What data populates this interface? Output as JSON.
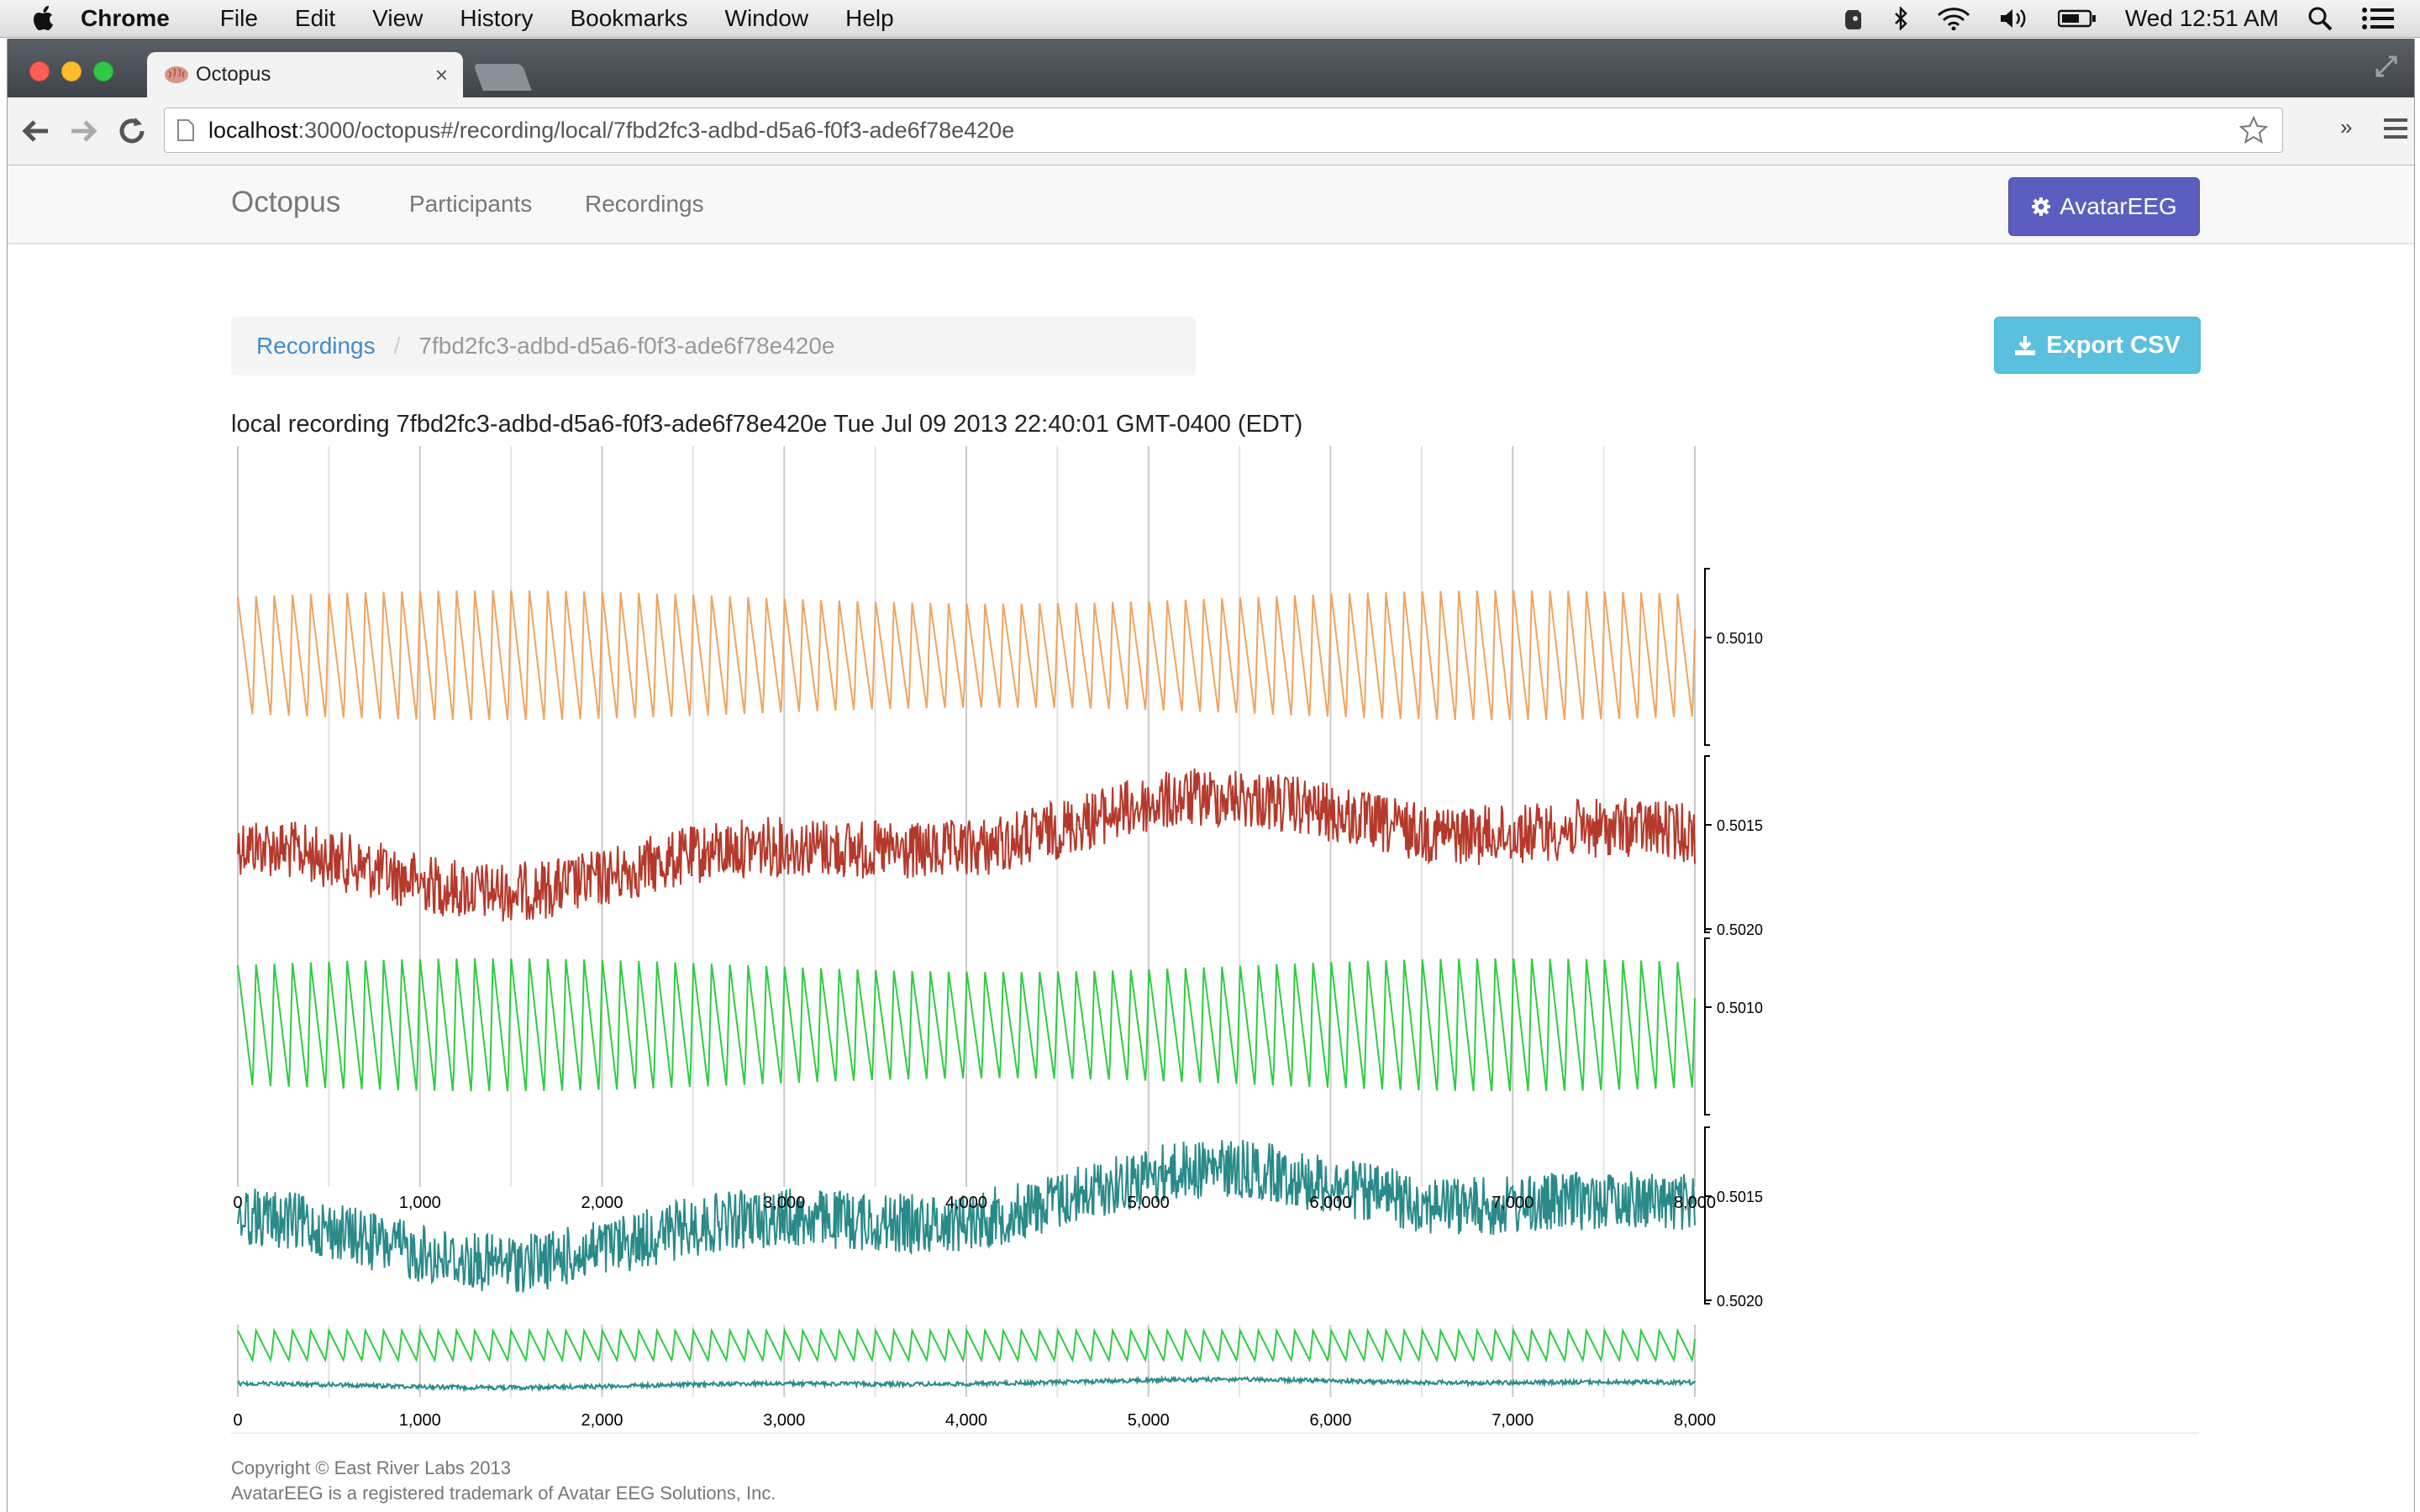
{
  "menubar": {
    "app_name": "Chrome",
    "items": [
      "File",
      "Edit",
      "View",
      "History",
      "Bookmarks",
      "Window",
      "Help"
    ],
    "clock": "Wed 12:51 AM",
    "tray_icons": [
      "evernote-icon",
      "bluetooth-icon",
      "wifi-icon",
      "volume-icon",
      "battery-icon",
      "spotlight-icon",
      "notification-center-icon"
    ]
  },
  "browser": {
    "tab_title": "Octopus",
    "url_host": "localhost",
    "url_path": ":3000/octopus#/recording/local/7fbd2fc3-adbd-d5a6-f0f3-ade6f78e420e",
    "extension_chevron": "»"
  },
  "navbar": {
    "brand": "Octopus",
    "links": [
      "Participants",
      "Recordings"
    ],
    "device_button": "AvatarEEG"
  },
  "breadcrumb": {
    "parent": "Recordings",
    "separator": "/",
    "current": "7fbd2fc3-adbd-d5a6-f0f3-ade6f78e420e"
  },
  "actions": {
    "export_label": "Export CSV"
  },
  "recording": {
    "title": "local recording 7fbd2fc3-adbd-d5a6-f0f3-ade6f78e420e Tue Jul 09 2013 22:40:01 GMT-0400 (EDT)"
  },
  "chart_data": [
    {
      "type": "line",
      "title": "",
      "xlabel": "",
      "ylabel": "",
      "x_range": [
        0,
        8000
      ],
      "x_ticks": [
        "0",
        "1,000",
        "2,000",
        "3,000",
        "4,000",
        "5,000",
        "6,000",
        "7,000",
        "8,000"
      ],
      "grid": true,
      "legend": "none",
      "series": [
        {
          "color": "#f0a35e",
          "shape": "sawtooth",
          "y_ticks": [
            "0.5010"
          ]
        },
        {
          "color": "#b5392b",
          "shape": "noisy",
          "y_ticks": [
            "0.5015",
            "0.5020"
          ]
        },
        {
          "color": "#2ecc40",
          "shape": "sawtooth",
          "y_ticks": [
            "0.5010"
          ]
        },
        {
          "color": "#2a8a8a",
          "shape": "noisy",
          "y_ticks": [
            "0.5015",
            "0.5020"
          ]
        }
      ]
    },
    {
      "type": "line",
      "title": "",
      "x_range": [
        0,
        8000
      ],
      "x_ticks": [
        "0",
        "1,000",
        "2,000",
        "3,000",
        "4,000",
        "5,000",
        "6,000",
        "7,000",
        "8,000"
      ],
      "series": [
        {
          "color": "#2ecc40",
          "shape": "sawtooth"
        },
        {
          "color": "#2a8a8a",
          "shape": "noisy"
        }
      ]
    }
  ],
  "footer": {
    "copyright": "Copyright © East River Labs 2013",
    "trademark": "AvatarEEG is a registered trademark of Avatar EEG Solutions, Inc."
  }
}
